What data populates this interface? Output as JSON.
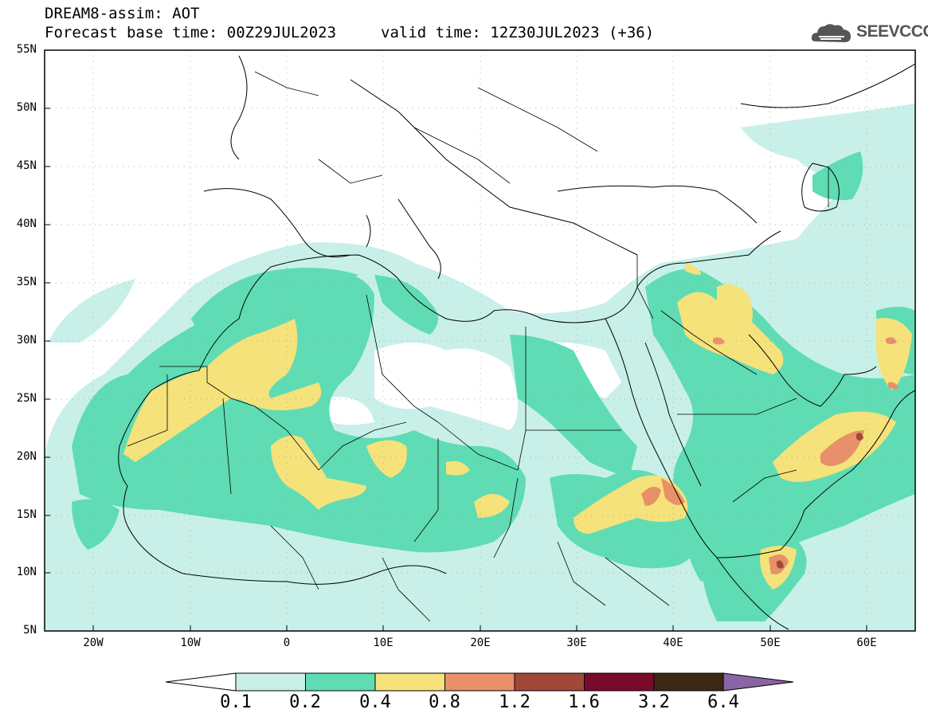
{
  "header": {
    "title": "DREAM8-assim: AOT",
    "base_time": "Forecast base time: 00Z29JUL2023",
    "valid_time": "valid time: 12Z30JUL2023 (+36)"
  },
  "logo": {
    "text": "SEEVCCC",
    "icon": "cloud-logo-icon"
  },
  "map": {
    "lat_labels": [
      "55N",
      "50N",
      "45N",
      "40N",
      "35N",
      "30N",
      "25N",
      "20N",
      "15N",
      "10N",
      "5N"
    ],
    "lon_labels": [
      "20W",
      "10W",
      "0",
      "10E",
      "20E",
      "30E",
      "40E",
      "50E",
      "60E"
    ]
  },
  "colorbar": {
    "labels": [
      "0.1",
      "0.2",
      "0.4",
      "0.8",
      "1.2",
      "1.6",
      "3.2",
      "6.4"
    ],
    "colors": [
      "#c8f0e8",
      "#5fdcb4",
      "#f5e27a",
      "#e8906a",
      "#a0483a",
      "#7a0a2a",
      "#3c2814",
      "#8a64a4"
    ],
    "under_color": "#ffffff"
  }
}
